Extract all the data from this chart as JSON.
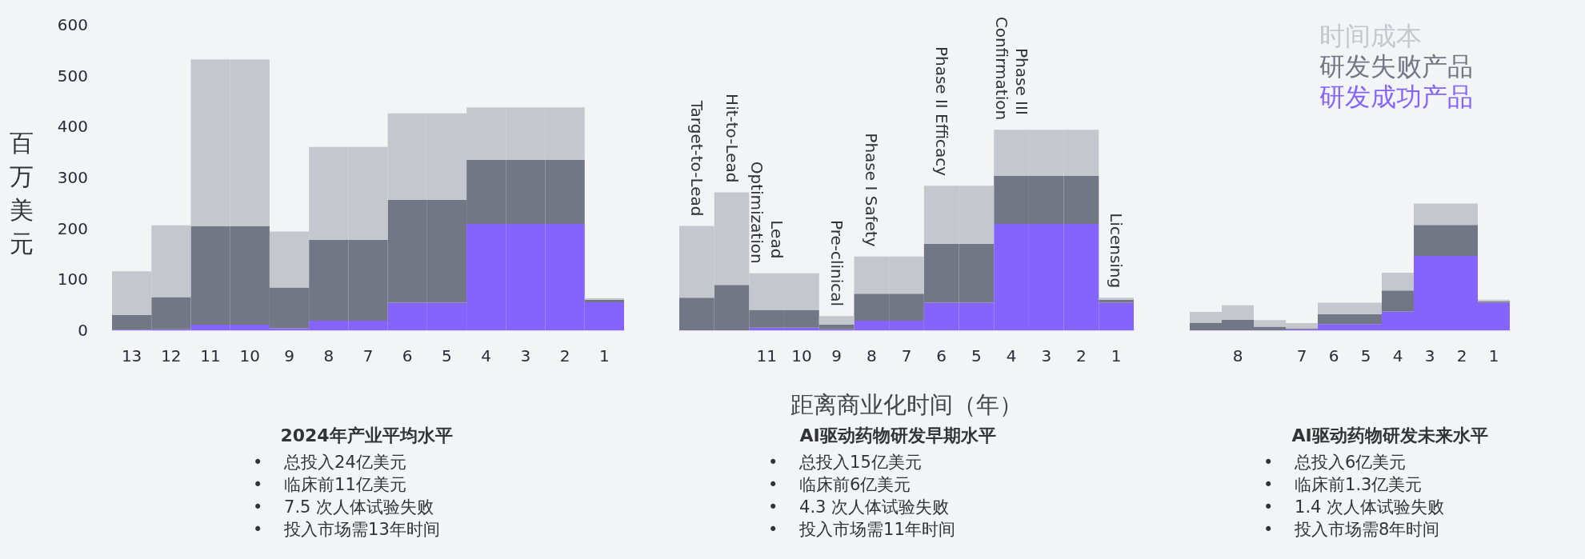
{
  "chart_data": [
    {
      "type": "bar",
      "title": "2024年产业平均水平",
      "ylabel": "百万美元",
      "stacked": true,
      "ylim": [
        0,
        600
      ],
      "yticks": [
        0,
        100,
        200,
        300,
        400,
        500,
        600
      ],
      "categories": [
        "13",
        "12",
        "11",
        "10",
        "9",
        "8",
        "7",
        "6",
        "5",
        "4",
        "3",
        "2",
        "1"
      ],
      "series": [
        {
          "color": "#8563ff",
          "values": [
            1,
            2,
            11,
            11,
            4,
            19,
            19,
            54,
            54,
            209,
            209,
            209,
            55
          ]
        },
        {
          "color": "#727786",
          "values": [
            29,
            63,
            193,
            193,
            80,
            159,
            159,
            202,
            202,
            126,
            126,
            126,
            5
          ]
        },
        {
          "color": "#c5c7ce",
          "values": [
            86,
            141,
            328,
            328,
            110,
            182,
            182,
            170,
            170,
            103,
            103,
            103,
            3
          ]
        }
      ],
      "annotations": [
        "•    总投入24亿美元",
        "•    临床前11亿美元",
        "•    7.5 次人体试验失败",
        "•    投入市场需13年时间"
      ]
    },
    {
      "type": "bar",
      "title": "AI驱动药物研发早期水平",
      "xlabel": "距离商业化时间（年）",
      "stacked": true,
      "ylim": [
        0,
        600
      ],
      "tick_labels": "x",
      "categories": [
        null,
        null,
        "11",
        "10",
        "9",
        "8",
        "7",
        "6",
        "5",
        "4",
        "3",
        "2",
        "1"
      ],
      "series": [
        {
          "color": "#8563ff",
          "values": [
            0,
            0,
            5,
            5,
            2,
            19,
            19,
            54,
            54,
            209,
            209,
            209,
            54
          ]
        },
        {
          "color": "#727786",
          "values": [
            64,
            89,
            35,
            35,
            9,
            53,
            53,
            116,
            116,
            94,
            94,
            94,
            6
          ]
        },
        {
          "color": "#c5c7ce",
          "values": [
            141,
            182,
            72,
            72,
            17,
            73,
            73,
            114,
            114,
            91,
            91,
            91,
            4
          ],
          "value_labels": [
            "Target-to-Lead",
            "Hit-to-Lead",
            "Lead Optimization",
            null,
            "Pre-clinical",
            "Phase I Safety",
            null,
            "Phase II Efficacy",
            null,
            "Phase III Confirmation",
            null,
            null,
            "Licensing"
          ]
        }
      ],
      "annotations": [
        "•    总投入15亿美元",
        "•    临床前6亿美元",
        "•    4.3 次人体试验失败",
        "•    投入市场需11年时间"
      ]
    },
    {
      "type": "bar",
      "title": "AI驱动药物研发未来水平",
      "stacked": true,
      "ylim": [
        0,
        600
      ],
      "tick_labels": "x",
      "legend": "top right",
      "categories": [
        null,
        "8",
        null,
        "7",
        "6",
        "5",
        "4",
        "3",
        "2",
        "1"
      ],
      "series": [
        {
          "name": "研发成功产品",
          "color": "#8563ff",
          "values": [
            0,
            0,
            0,
            2,
            12,
            12,
            37,
            146,
            146,
            54
          ]
        },
        {
          "name": "研发失败产品",
          "color": "#727786",
          "values": [
            15,
            21,
            7,
            2,
            20,
            20,
            41,
            61,
            61,
            3
          ]
        },
        {
          "name": "时间成本",
          "color": "#c5c7ce",
          "values": [
            21,
            28,
            13,
            10,
            22,
            22,
            35,
            42,
            42,
            3
          ]
        }
      ],
      "annotations": [
        "•    总投入6亿美元",
        "•    临床前1.3亿美元",
        "•    1.4 次人体试验失败",
        "•    投入市场需8年时间"
      ]
    }
  ]
}
